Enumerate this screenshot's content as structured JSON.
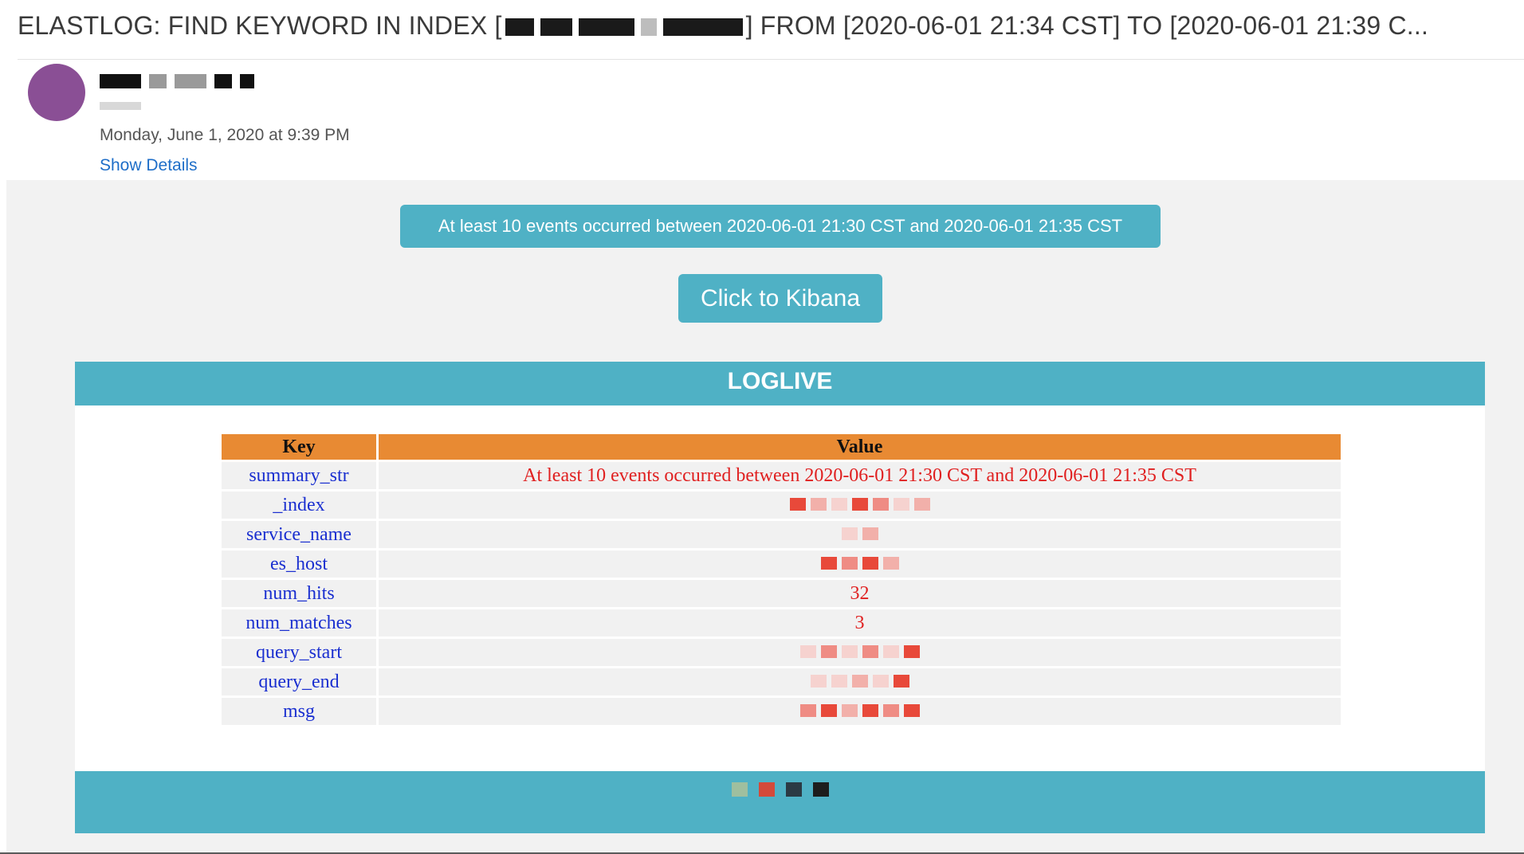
{
  "mail": {
    "subject_prefix": "ELASTLOG: FIND KEYWORD IN INDEX [",
    "subject_suffix": "] FROM [2020-06-01 21:34 CST] TO [2020-06-01 21:39 C...",
    "date": "Monday, June 1, 2020 at 9:39 PM",
    "show_details": "Show Details"
  },
  "body": {
    "banner": "At least 10 events occurred between 2020-06-01 21:30 CST and 2020-06-01 21:35 CST",
    "kibana_button": "Click to Kibana",
    "card_title": "LOGLIVE",
    "table": {
      "headers": [
        "Key",
        "Value"
      ],
      "rows": [
        {
          "key": "summary_str",
          "value": "At least 10 events occurred between 2020-06-01 21:30 CST and 2020-06-01 21:35 CST"
        },
        {
          "key": "_index",
          "value": ""
        },
        {
          "key": "service_name",
          "value": ""
        },
        {
          "key": "es_host",
          "value": ""
        },
        {
          "key": "num_hits",
          "value": "32"
        },
        {
          "key": "num_matches",
          "value": "3"
        },
        {
          "key": "query_start",
          "value": ""
        },
        {
          "key": "query_end",
          "value": ""
        },
        {
          "key": "msg",
          "value": ""
        }
      ]
    }
  },
  "colors": {
    "accent": "#4fb1c5",
    "table_header": "#e88a33",
    "key_text": "#1a2fd0",
    "value_text": "#e02020",
    "link": "#1e6ec8",
    "avatar": "#8a4f95"
  }
}
